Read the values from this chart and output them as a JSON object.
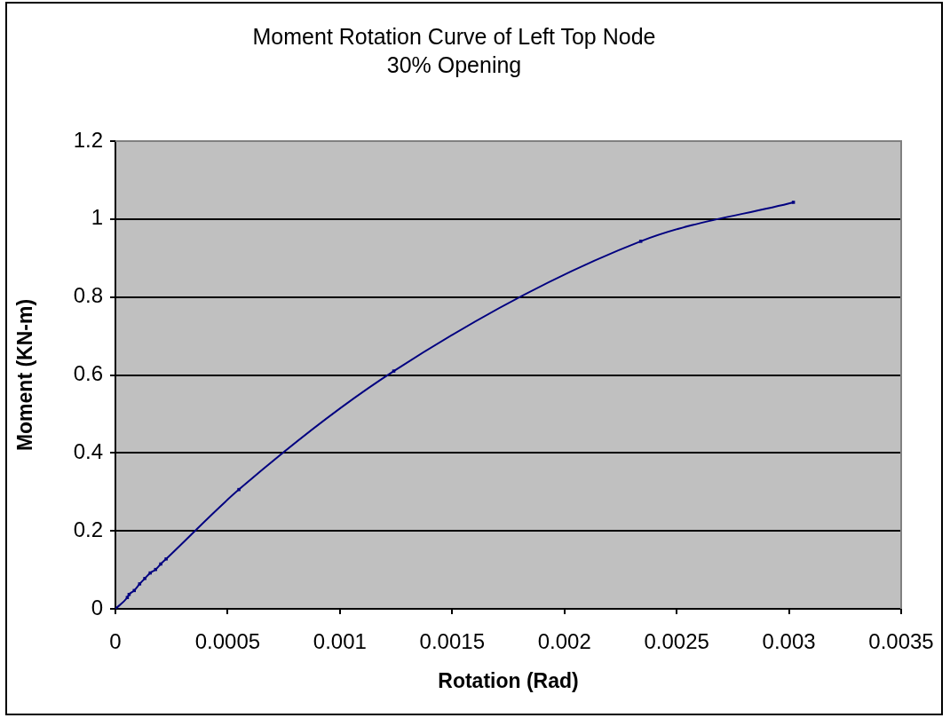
{
  "chart_data": {
    "type": "line",
    "title": "Moment Rotation Curve of Left Top Node",
    "subtitle": "30% Opening",
    "xlabel": "Rotation (Rad)",
    "ylabel": "Moment (KN-m)",
    "series": [
      {
        "color": "#000080",
        "x": [
          0,
          5.3e-05,
          6.1e-05,
          8.4e-05,
          0.000108,
          0.000131,
          0.000155,
          0.000179,
          0.000202,
          0.000226,
          0.00055,
          0.00124,
          0.00234,
          0.00302
        ],
        "values": [
          0,
          0.029,
          0.037,
          0.047,
          0.064,
          0.078,
          0.092,
          0.101,
          0.115,
          0.128,
          0.306,
          0.61,
          0.943,
          1.043
        ]
      }
    ],
    "xlim": [
      0,
      0.0035
    ],
    "xticks": [
      0,
      0.0005,
      0.001,
      0.0015,
      0.002,
      0.0025,
      0.003,
      0.0035
    ],
    "ylim": [
      0,
      1.2
    ],
    "yticks": [
      0,
      0.2,
      0.4,
      0.6,
      0.8,
      1,
      1.2
    ],
    "grid": "y",
    "marker": "square",
    "line_style": "solid"
  }
}
